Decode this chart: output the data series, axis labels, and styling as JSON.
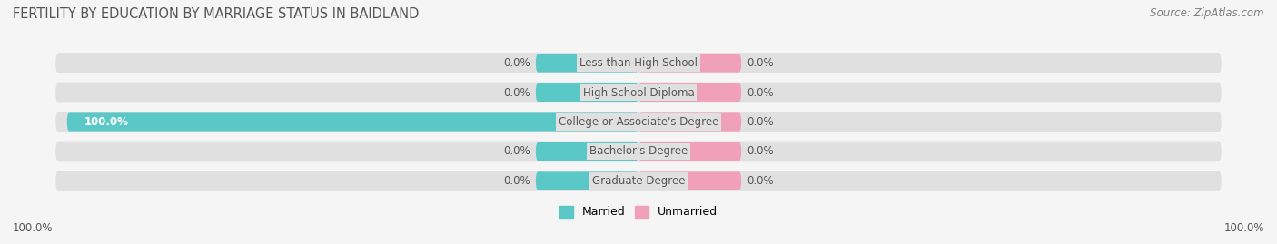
{
  "title": "FERTILITY BY EDUCATION BY MARRIAGE STATUS IN BAIDLAND",
  "source": "Source: ZipAtlas.com",
  "categories": [
    "Less than High School",
    "High School Diploma",
    "College or Associate's Degree",
    "Bachelor's Degree",
    "Graduate Degree"
  ],
  "married_values": [
    0.0,
    0.0,
    100.0,
    0.0,
    0.0
  ],
  "unmarried_values": [
    0.0,
    0.0,
    0.0,
    0.0,
    0.0
  ],
  "married_color": "#5bc8c8",
  "unmarried_color": "#f0a0b8",
  "bg_color": "#f5f5f5",
  "bar_bg_color": "#e0e0e0",
  "title_color": "#555555",
  "label_color": "#555555",
  "axis_label_left": "100.0%",
  "axis_label_right": "100.0%",
  "max_val": 100.0,
  "small_bar_width": 18
}
